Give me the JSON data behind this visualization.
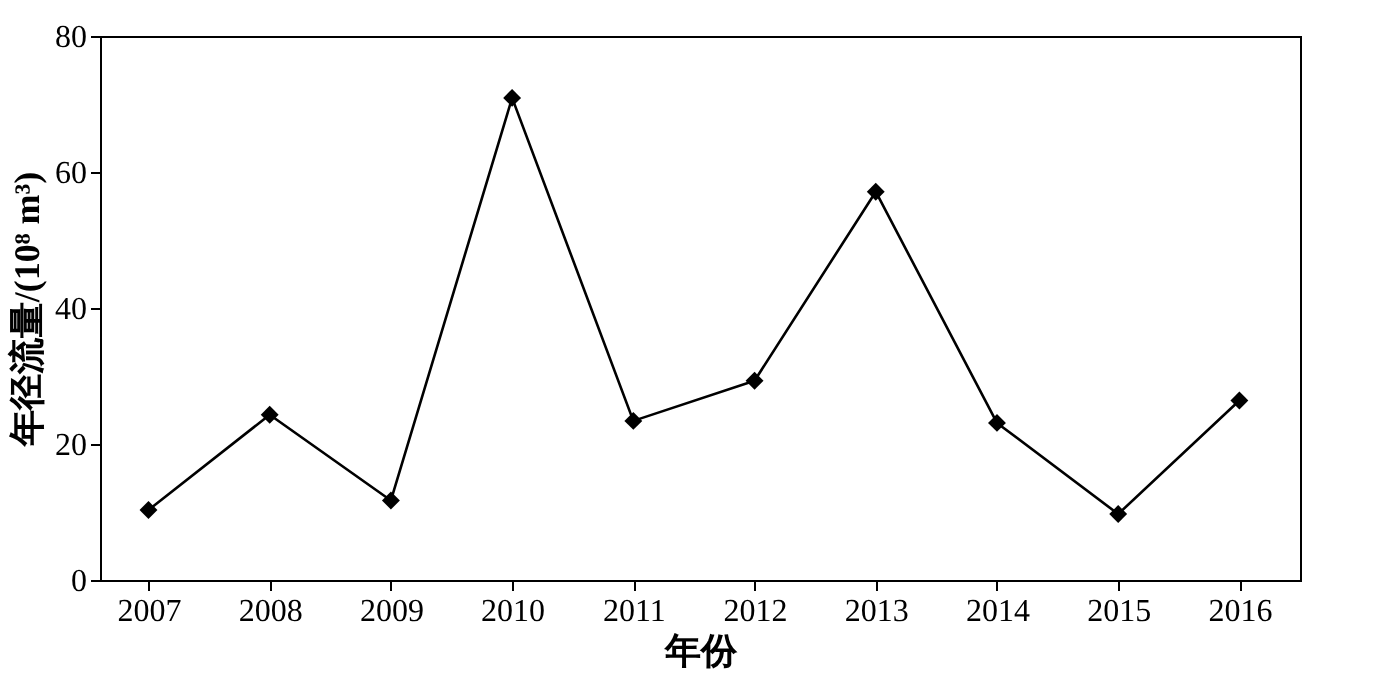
{
  "chart_data": {
    "type": "line",
    "xlabel": "年份",
    "ylabel": "年径流量/(10⁸ m³)",
    "x": [
      2007,
      2008,
      2009,
      2010,
      2011,
      2012,
      2013,
      2014,
      2015,
      2016
    ],
    "series": [
      {
        "color": "#000000",
        "values": [
          10.3,
          24.3,
          11.7,
          70.9,
          23.4,
          29.3,
          57.1,
          23.1,
          9.7,
          26.4
        ]
      }
    ],
    "xlim": [
      2006.6,
      2016.5
    ],
    "xticks": [
      2007,
      2008,
      2009,
      2010,
      2011,
      2012,
      2013,
      2014,
      2015,
      2016
    ],
    "ylim": [
      0,
      80
    ],
    "yticks": [
      0,
      20,
      40,
      60,
      80
    ],
    "marker": "diamond",
    "line_style": "solid",
    "grid": false
  }
}
